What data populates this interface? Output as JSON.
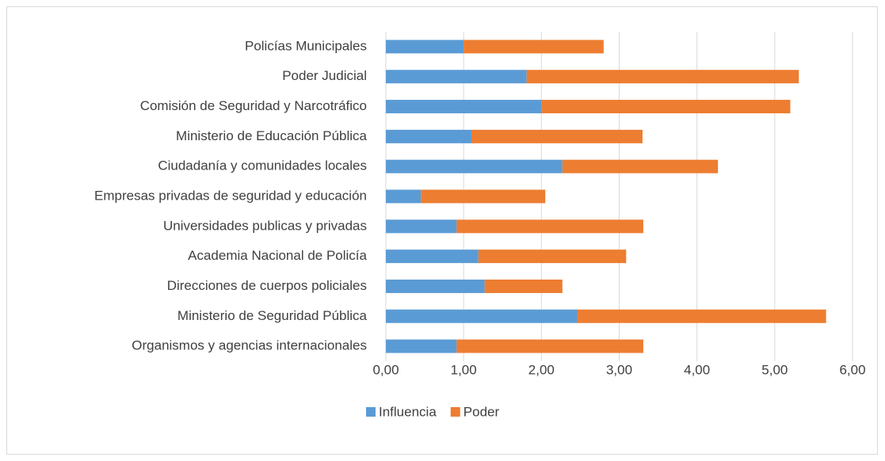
{
  "chart_data": {
    "type": "stacked_bar_horizontal",
    "categories": [
      "Policías Municipales",
      "Poder Judicial",
      "Comisión de Seguridad y Narcotráfico",
      "Ministerio de Educación Pública",
      "Ciudadanía y comunidades locales",
      "Empresas privadas de seguridad y educación",
      "Universidades publicas y privadas",
      "Academia Nacional de Policía",
      "Direcciones de cuerpos policiales",
      "Ministerio de Seguridad Pública",
      "Organismos y agencias internacionales"
    ],
    "series": [
      {
        "name": "Influencia",
        "color": "#5b9bd5",
        "values": [
          1.0,
          1.81,
          2.0,
          1.1,
          2.27,
          0.45,
          0.91,
          1.19,
          1.27,
          2.46,
          0.91
        ]
      },
      {
        "name": "Poder",
        "color": "#ed7d31",
        "values": [
          1.8,
          3.5,
          3.2,
          2.2,
          2.0,
          1.6,
          2.4,
          1.9,
          1.0,
          3.2,
          2.4
        ]
      }
    ],
    "xlim": [
      0,
      6
    ],
    "xticks": [
      {
        "value": 0,
        "label": "0,00"
      },
      {
        "value": 1,
        "label": "1,00"
      },
      {
        "value": 2,
        "label": "2,00"
      },
      {
        "value": 3,
        "label": "3,00"
      },
      {
        "value": 4,
        "label": "4,00"
      },
      {
        "value": 5,
        "label": "5,00"
      },
      {
        "value": 6,
        "label": "6,00"
      }
    ],
    "grid": true,
    "legend": "bottom"
  }
}
